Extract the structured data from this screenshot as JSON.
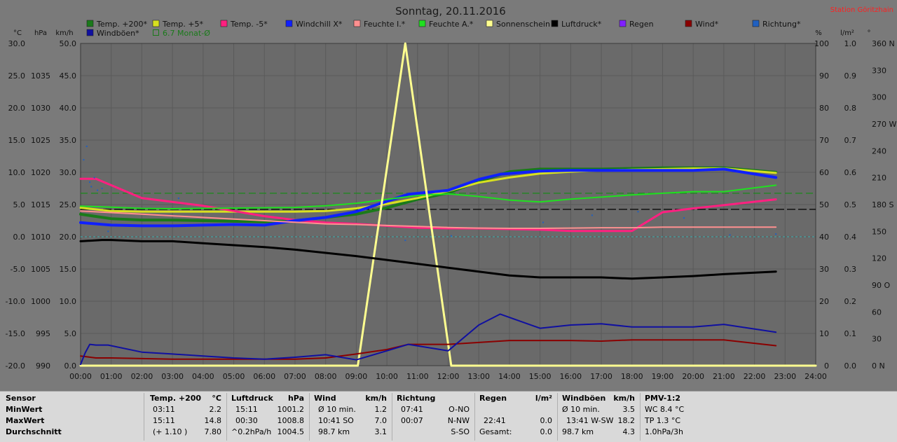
{
  "title": "Sonntag, 20.11.2016",
  "station": "Station Göritzhain",
  "colors": {
    "bg": "#7a7a7a",
    "plot_bg": "#6a6a6a",
    "grid": "#5a5a5a",
    "station": "#ff2020"
  },
  "chart_data": {
    "type": "line",
    "x_ticks": [
      "00:00",
      "01:00",
      "02:00",
      "03:00",
      "04:00",
      "05:00",
      "06:00",
      "07:00",
      "08:00",
      "09:00",
      "10:00",
      "11:00",
      "12:00",
      "13:00",
      "14:00",
      "15:00",
      "16:00",
      "17:00",
      "18:00",
      "19:00",
      "20:00",
      "21:00",
      "22:00",
      "23:00",
      "24:00"
    ],
    "xlim": [
      0,
      24
    ],
    "axes": {
      "temp": {
        "unit": "°C",
        "range": [
          -20,
          30
        ],
        "ticks": [
          "30.0",
          "25.0",
          "20.0",
          "15.0",
          "10.0",
          "5.0",
          "0.0",
          "-5.0",
          "-10.0",
          "-15.0",
          "-20.0"
        ]
      },
      "press": {
        "unit": "hPa",
        "range": [
          990,
          1040
        ],
        "ticks": [
          "1035",
          "1030",
          "1025",
          "1020",
          "1015",
          "1010",
          "1005",
          "1000",
          "995",
          "990"
        ]
      },
      "wind": {
        "unit": "km/h",
        "range": [
          0,
          50
        ],
        "ticks": [
          "50.0",
          "45.0",
          "40.0",
          "35.0",
          "30.0",
          "25.0",
          "20.0",
          "15.0",
          "10.0",
          "5.0",
          "0.0"
        ]
      },
      "hum": {
        "unit": "%",
        "range": [
          0,
          100
        ],
        "ticks": [
          "100",
          "90",
          "80",
          "70",
          "60",
          "50",
          "40",
          "30",
          "20",
          "10",
          "0"
        ]
      },
      "rain": {
        "unit": "l/m²",
        "range": [
          0,
          1
        ],
        "ticks": [
          "1.0",
          "0.9",
          "0.8",
          "0.7",
          "0.6",
          "0.5",
          "0.4",
          "0.3",
          "0.2",
          "0.1",
          "0.0"
        ]
      },
      "dir": {
        "unit": "°",
        "range": [
          0,
          360
        ],
        "ticks": [
          "360 N",
          "330",
          "300",
          "270 W",
          "240",
          "210",
          "180 S",
          "150",
          "120",
          "90 O",
          "60",
          "30",
          "0 N"
        ]
      }
    },
    "legend": [
      {
        "name": "Temp. +200*",
        "color": "#1a7a1a"
      },
      {
        "name": "Temp. +5*",
        "color": "#d8e020"
      },
      {
        "name": "Temp. -5*",
        "color": "#ff2080"
      },
      {
        "name": "Windchill X*",
        "color": "#1020ff"
      },
      {
        "name": "Feuchte I.*",
        "color": "#ff9090"
      },
      {
        "name": "Feuchte A.*",
        "color": "#20e020"
      },
      {
        "name": "Sonnenschein",
        "color": "#ffff90"
      },
      {
        "name": "Luftdruck*",
        "color": "#000000"
      },
      {
        "name": "Regen",
        "color": "#8020ff"
      },
      {
        "name": "Wind*",
        "color": "#8a0000"
      },
      {
        "name": "Richtung*",
        "color": "#2060c0"
      },
      {
        "name": "Windböen*",
        "color": "#1010a0"
      },
      {
        "name": "6.7 Monat-Ø",
        "color": "#1a7a1a"
      }
    ],
    "series": [
      {
        "name": "Temp. +200*",
        "axis": "temp",
        "color": "#1a7a1a",
        "width": 4,
        "x": [
          0,
          1,
          2,
          3,
          4,
          5,
          6,
          7,
          8,
          9,
          10,
          11,
          12,
          13,
          14,
          15,
          16,
          17,
          18,
          19,
          20,
          21,
          22.7
        ],
        "y": [
          3.5,
          2.8,
          2.6,
          2.6,
          2.5,
          2.4,
          2.3,
          2.5,
          3.0,
          3.5,
          4.5,
          5.8,
          6.8,
          8.6,
          10.1,
          10.5,
          10.5,
          10.5,
          10.6,
          10.7,
          10.7,
          10.7,
          10.0
        ]
      },
      {
        "name": "Temp. +5*",
        "axis": "temp",
        "color": "#d8e020",
        "width": 3,
        "x": [
          0,
          1,
          2,
          3,
          4,
          5,
          6,
          7,
          8,
          9,
          10,
          11,
          12,
          13,
          14,
          15,
          16,
          17,
          18,
          19,
          20,
          21,
          22.7
        ],
        "y": [
          4.5,
          4.0,
          3.9,
          3.9,
          3.9,
          3.9,
          3.9,
          3.9,
          4.0,
          4.4,
          5.1,
          6.0,
          7.1,
          8.4,
          9.2,
          9.8,
          10.1,
          10.3,
          10.4,
          10.5,
          10.6,
          10.6,
          9.9
        ]
      },
      {
        "name": "Temp. -5*",
        "axis": "temp",
        "color": "#ff2080",
        "width": 3,
        "x": [
          0,
          0.5,
          1.5,
          2,
          3,
          4,
          5,
          6,
          7,
          8,
          9,
          10,
          11,
          12,
          13,
          14,
          15,
          16,
          17,
          18,
          19,
          20,
          21,
          22.7
        ],
        "y": [
          9.0,
          9.0,
          7.0,
          6.0,
          5.4,
          4.8,
          4.0,
          3.2,
          2.6,
          2.2,
          2.0,
          1.7,
          1.4,
          1.3,
          1.3,
          1.2,
          1.1,
          0.9,
          0.9,
          0.9,
          3.8,
          4.4,
          4.9,
          5.8
        ]
      },
      {
        "name": "Windchill X*",
        "axis": "temp",
        "color": "#1020ff",
        "width": 4,
        "x": [
          0,
          1,
          2,
          3,
          4,
          5,
          6,
          7,
          8,
          9,
          10,
          10.7,
          12,
          13,
          13.7,
          15,
          16,
          17,
          18,
          19,
          20,
          21,
          22.7
        ],
        "y": [
          2.2,
          1.8,
          1.7,
          1.7,
          1.8,
          1.9,
          1.8,
          2.5,
          3.0,
          3.9,
          5.5,
          6.6,
          7.2,
          8.9,
          9.7,
          10.2,
          10.3,
          10.3,
          10.3,
          10.3,
          10.3,
          10.5,
          9.2
        ]
      },
      {
        "name": "Feuchte I.*",
        "axis": "hum",
        "color": "#ff9090",
        "width": 2,
        "x": [
          0,
          1,
          2,
          3,
          4,
          5,
          6,
          7,
          8,
          9,
          10,
          11,
          12,
          13,
          14,
          15,
          16,
          17,
          18,
          19,
          20,
          21,
          22.7
        ],
        "y": [
          48,
          47.5,
          47,
          46.5,
          46,
          45.5,
          45,
          44.5,
          44,
          43.8,
          43.5,
          43.2,
          42.9,
          42.7,
          42.6,
          42.6,
          42.7,
          42.8,
          42.8,
          43,
          43,
          43,
          43
        ]
      },
      {
        "name": "Feuchte A.*",
        "axis": "hum",
        "color": "#20e020",
        "width": 2,
        "x": [
          0,
          1,
          2,
          3,
          4,
          5,
          6,
          7,
          8,
          9,
          10,
          11,
          12,
          13,
          14,
          15,
          16,
          17,
          18,
          19,
          20,
          21,
          22.7
        ],
        "y": [
          49.5,
          49.2,
          48.8,
          48.7,
          48.8,
          48.9,
          49,
          49.1,
          49.6,
          50.4,
          51.6,
          52.8,
          53.3,
          52.5,
          51.4,
          50.8,
          51.7,
          52.3,
          53,
          53.5,
          54,
          54,
          56
        ]
      },
      {
        "name": "Sonnenschein",
        "axis": "hum",
        "color": "#ffff90",
        "width": 3,
        "x": [
          0,
          9.05,
          10.6,
          12.1,
          24
        ],
        "y": [
          0,
          0,
          100,
          0,
          0
        ]
      },
      {
        "name": "Luftdruck*",
        "axis": "press",
        "color": "#000000",
        "width": 3,
        "x": [
          0,
          0.7,
          1,
          2,
          3,
          4,
          5,
          6,
          7,
          8,
          9,
          10,
          11,
          12,
          13,
          14,
          15,
          16,
          17,
          18,
          19,
          20,
          21,
          22.7
        ],
        "y": [
          1009.3,
          1009.5,
          1009.5,
          1009.3,
          1009.3,
          1009.0,
          1008.7,
          1008.4,
          1008.0,
          1007.5,
          1007.0,
          1006.4,
          1005.8,
          1005.2,
          1004.6,
          1004.0,
          1003.7,
          1003.7,
          1003.7,
          1003.5,
          1003.7,
          1003.9,
          1004.2,
          1004.6
        ]
      },
      {
        "name": "Wind*",
        "axis": "wind",
        "color": "#8a0000",
        "width": 2,
        "x": [
          0,
          0.5,
          1,
          2,
          3,
          4,
          5,
          6,
          7,
          8,
          9,
          10,
          10.7,
          12,
          13,
          14,
          15,
          16,
          17,
          18,
          19,
          20,
          21,
          22.7
        ],
        "y": [
          1.5,
          1.2,
          1.2,
          1.1,
          1.0,
          1.0,
          1.0,
          1.0,
          1.0,
          1.2,
          1.8,
          2.5,
          3.3,
          3.3,
          3.6,
          3.9,
          3.9,
          3.9,
          3.8,
          4.0,
          4.0,
          4.0,
          4.0,
          3.1
        ]
      },
      {
        "name": "Windböen*",
        "axis": "wind",
        "color": "#1010a0",
        "width": 2,
        "x": [
          0,
          0.15,
          0.3,
          0.5,
          0.9,
          2,
          3,
          4,
          5,
          6,
          7,
          8,
          9,
          10,
          10.7,
          12,
          13,
          13.7,
          15,
          16,
          17,
          18,
          19,
          20,
          21,
          22.7
        ],
        "y": [
          0.2,
          2.0,
          3.3,
          3.2,
          3.2,
          2.1,
          1.8,
          1.5,
          1.2,
          1.0,
          1.3,
          1.7,
          0.9,
          2.3,
          3.3,
          2.3,
          6.3,
          8.0,
          5.8,
          6.3,
          6.5,
          6.0,
          6.0,
          6.0,
          6.4,
          5.2
        ]
      }
    ],
    "direction_points": {
      "axis": "dir",
      "color": "#2060c0",
      "x": [
        0.1,
        0.2,
        0.3,
        0.35,
        0.45,
        0.55,
        0.7,
        0.9,
        3.2,
        10.6,
        12.1,
        15.1,
        16.7,
        18.2,
        19.7,
        21.2,
        22.7
      ],
      "y": [
        230,
        245,
        205,
        200,
        210,
        196,
        198,
        150,
        187,
        140,
        145,
        160,
        168,
        172,
        165,
        146,
        147
      ]
    },
    "reference_lines": [
      {
        "axis": "hum",
        "value": 53.5,
        "color": "#1a8a1a",
        "dash": "10,5"
      },
      {
        "axis": "hum",
        "value": 48.5,
        "color": "#000000",
        "dash": "12,4"
      },
      {
        "axis": "hum",
        "value": 40,
        "color": "#40a0a0",
        "dash": "3,3"
      }
    ]
  },
  "stats": {
    "sensor": {
      "header": "Sensor",
      "rows": [
        "MinWert",
        "MaxWert",
        "Durchschnitt"
      ]
    },
    "temp": {
      "h1": "Temp. +200",
      "h2": "°C",
      "rows": [
        [
          "03:11",
          "2.2"
        ],
        [
          "15:11",
          "14.8"
        ],
        [
          "(+ 1.10 )",
          "7.80"
        ]
      ]
    },
    "press": {
      "h1": "Luftdruck",
      "h2": "hPa",
      "rows": [
        [
          "15:11",
          "1001.2"
        ],
        [
          "00:30",
          "1008.8"
        ],
        [
          "^0.2hPa/h",
          "1004.5"
        ]
      ]
    },
    "wind": {
      "h1": "Wind",
      "h2": "km/h",
      "rows": [
        [
          "Ø 10 min.",
          "1.2"
        ],
        [
          "10:41   SO",
          "7.0"
        ],
        [
          "98.7 km",
          "3.1"
        ]
      ]
    },
    "dir": {
      "h1": "Richtung",
      "h2": "",
      "rows": [
        [
          "07:41",
          "O-NO"
        ],
        [
          "00:07",
          "N-NW"
        ],
        [
          "",
          "S-SO"
        ]
      ]
    },
    "rain": {
      "h1": "Regen",
      "h2": "l/m²",
      "rows": [
        [
          "",
          ""
        ],
        [
          "22:41",
          "0.0"
        ],
        [
          "Gesamt:",
          "0.0"
        ]
      ]
    },
    "gust": {
      "h1": "Windböen",
      "h2": "km/h",
      "rows": [
        [
          "Ø 10 min.",
          "3.5"
        ],
        [
          "13:41  W-SW",
          "18.2"
        ],
        [
          "98.7 km",
          "4.3"
        ]
      ]
    },
    "pmv": {
      "h1": "PMV-1:2",
      "rows": [
        "WC 8.4 °C",
        "TP 1.3 °C",
        "1.0hPa/3h"
      ]
    }
  }
}
